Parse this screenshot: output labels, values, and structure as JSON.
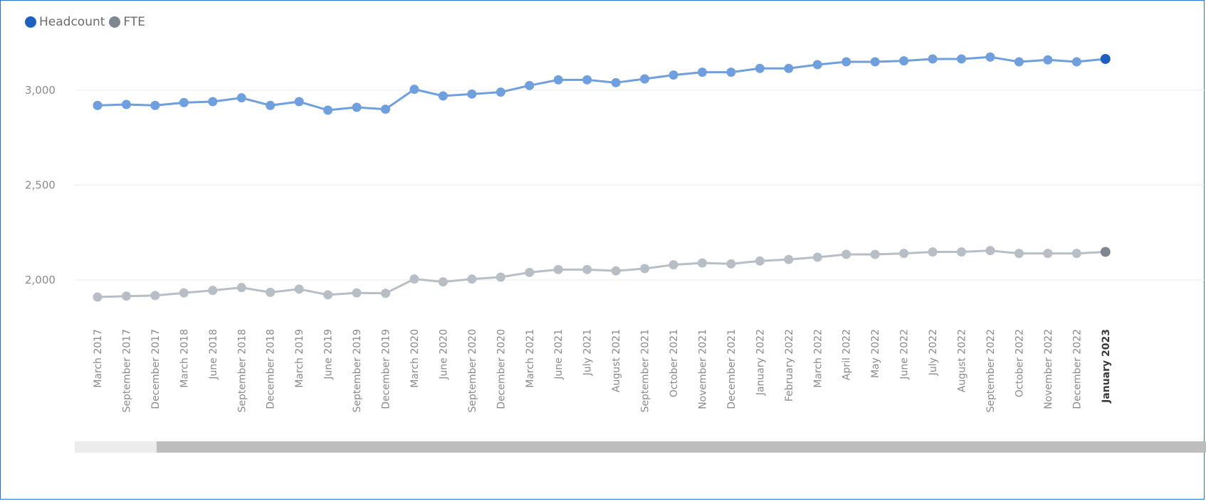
{
  "legend": [
    {
      "name": "Headcount",
      "color": "#1f5fbf"
    },
    {
      "name": "FTE",
      "color": "#7f8691"
    }
  ],
  "chart_data": {
    "type": "line",
    "categories": [
      "March 2017",
      "September 2017",
      "December 2017",
      "March 2018",
      "June 2018",
      "September 2018",
      "December 2018",
      "March 2019",
      "June 2019",
      "September 2019",
      "December 2019",
      "March 2020",
      "June 2020",
      "September 2020",
      "December 2020",
      "March 2021",
      "June 2021",
      "July 2021",
      "August 2021",
      "September 2021",
      "October 2021",
      "November 2021",
      "December 2021",
      "January 2022",
      "February 2022",
      "March 2022",
      "April 2022",
      "May 2022",
      "June 2022",
      "July 2022",
      "August 2022",
      "September 2022",
      "October 2022",
      "November 2022",
      "December 2022",
      "January 2023"
    ],
    "highlight_category": "January 2023",
    "series": [
      {
        "name": "Headcount",
        "color": "#6f9fdc",
        "highlight_color": "#1f5fbf",
        "values": [
          2920,
          2925,
          2920,
          2935,
          2940,
          2960,
          2920,
          2940,
          2895,
          2910,
          2900,
          3005,
          2970,
          2980,
          2990,
          3025,
          3055,
          3055,
          3040,
          3060,
          3080,
          3095,
          3095,
          3115,
          3115,
          3135,
          3150,
          3150,
          3155,
          3165,
          3165,
          3175,
          3150,
          3160,
          3150,
          3165
        ]
      },
      {
        "name": "FTE",
        "color": "#b8bec6",
        "highlight_color": "#7f8691",
        "values": [
          1910,
          1915,
          1918,
          1932,
          1945,
          1960,
          1935,
          1952,
          1922,
          1932,
          1930,
          2005,
          1990,
          2005,
          2015,
          2040,
          2055,
          2055,
          2048,
          2060,
          2080,
          2090,
          2085,
          2100,
          2108,
          2120,
          2135,
          2135,
          2140,
          2148,
          2148,
          2155,
          2140,
          2140,
          2140,
          2148
        ]
      }
    ],
    "y_ticks": [
      {
        "value": 3000,
        "label": "3,000"
      },
      {
        "value": 2500,
        "label": "2,500"
      },
      {
        "value": 2000,
        "label": "2,000"
      }
    ],
    "ylim": [
      1830,
      3180
    ],
    "grid": true,
    "legend_position": "top-left"
  }
}
